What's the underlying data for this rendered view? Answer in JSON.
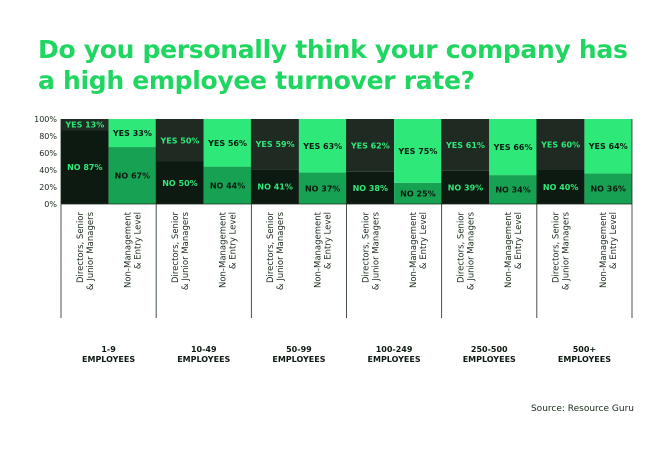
{
  "title_line1": "Do you personally think your company has",
  "title_line2": "a high employee turnover rate?",
  "source": "Source: Resource Guru",
  "colors": {
    "title": "#1ed660",
    "yes_directors": "#1f2a22",
    "no_directors": "#0d1a11",
    "yes_entry": "#2ee87a",
    "no_entry": "#17a152"
  },
  "chart_data": {
    "type": "bar",
    "stacked": true,
    "ylim": [
      0,
      100
    ],
    "yticks": [
      "0%",
      "20%",
      "40%",
      "60%",
      "80%",
      "100%"
    ],
    "roles": [
      "Directors, Senior & Junior Managers",
      "Non-Management & Entry Level"
    ],
    "groups": [
      {
        "label_line1": "1-9",
        "label_line2": "EMPLOYEES",
        "bars": [
          {
            "yes": 13,
            "no": 87,
            "yes_label": "YES 13%",
            "no_label": "NO 87%"
          },
          {
            "yes": 33,
            "no": 67,
            "yes_label": "YES 33%",
            "no_label": "NO 67%"
          }
        ]
      },
      {
        "label_line1": "10-49",
        "label_line2": "EMPLOYEES",
        "bars": [
          {
            "yes": 50,
            "no": 50,
            "yes_label": "YES 50%",
            "no_label": "NO 50%"
          },
          {
            "yes": 56,
            "no": 44,
            "yes_label": "YES 56%",
            "no_label": "NO 44%"
          }
        ]
      },
      {
        "label_line1": "50-99",
        "label_line2": "EMPLOYEES",
        "bars": [
          {
            "yes": 59,
            "no": 41,
            "yes_label": "YES 59%",
            "no_label": "NO 41%"
          },
          {
            "yes": 63,
            "no": 37,
            "yes_label": "YES 63%",
            "no_label": "NO 37%"
          }
        ]
      },
      {
        "label_line1": "100-249",
        "label_line2": "EMPLOYEES",
        "bars": [
          {
            "yes": 62,
            "no": 38,
            "yes_label": "YES 62%",
            "no_label": "NO 38%"
          },
          {
            "yes": 75,
            "no": 25,
            "yes_label": "YES 75%",
            "no_label": "NO 25%"
          }
        ]
      },
      {
        "label_line1": "250-500",
        "label_line2": "EMPLOYEES",
        "bars": [
          {
            "yes": 61,
            "no": 39,
            "yes_label": "YES 61%",
            "no_label": "NO 39%"
          },
          {
            "yes": 66,
            "no": 34,
            "yes_label": "YES 66%",
            "no_label": "NO 34%"
          }
        ]
      },
      {
        "label_line1": "500+",
        "label_line2": "EMPLOYEES",
        "bars": [
          {
            "yes": 60,
            "no": 40,
            "yes_label": "YES 60%",
            "no_label": "NO 40%"
          },
          {
            "yes": 64,
            "no": 36,
            "yes_label": "YES 64%",
            "no_label": "NO 36%"
          }
        ]
      }
    ]
  }
}
